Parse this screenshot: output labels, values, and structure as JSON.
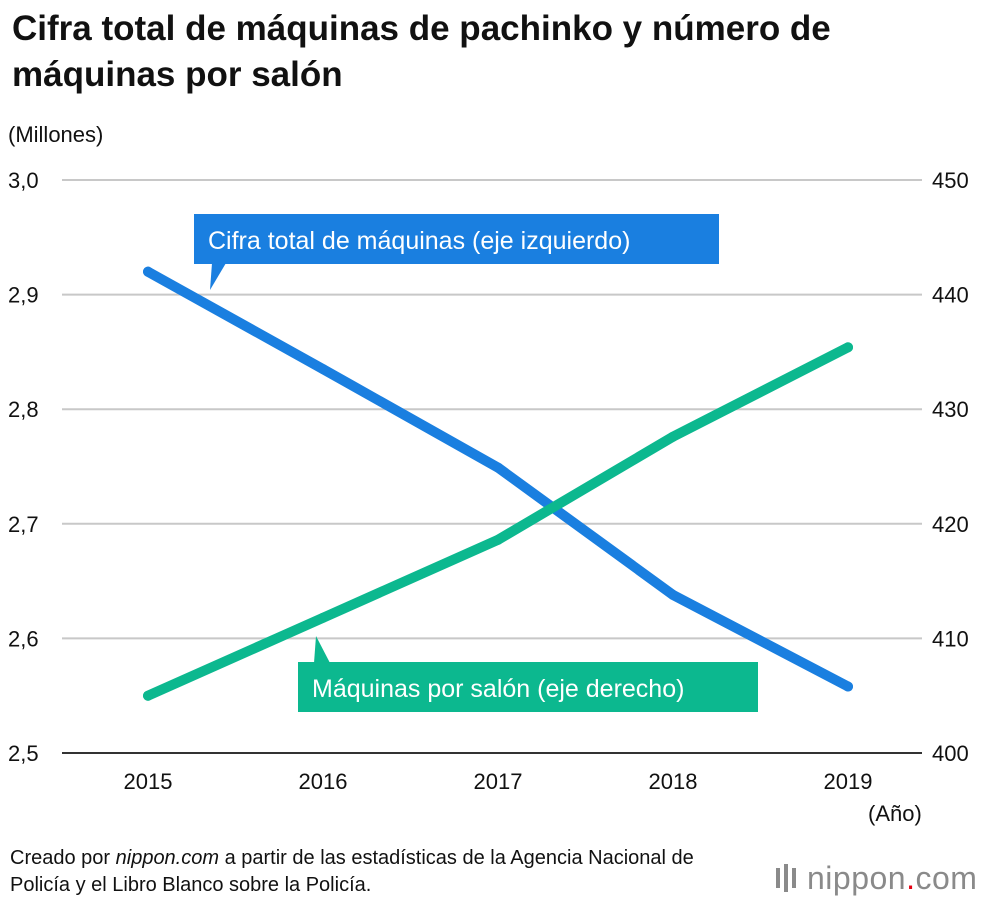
{
  "title": "Cifra total de máquinas de pachinko y número de máquinas por salón",
  "left_unit": "(Millones)",
  "right_unit": "(Año)",
  "footer": {
    "prefix": "Creado por ",
    "site": "nippon.com",
    "suffix": " a partir de las estadísticas de la Agencia Nacional de Policía y el Libro Blanco sobre la Policía."
  },
  "brand": {
    "name": "nippon",
    "dot": ".",
    "tld": "com",
    "icon": "nippon-logo-icon"
  },
  "colors": {
    "blue": "#1a7fe0",
    "green": "#0cb88f",
    "grid": "#c8c8c8",
    "axis": "#333333"
  },
  "chart_data": {
    "type": "line",
    "title": "Cifra total de máquinas de pachinko y número de máquinas por salón",
    "x": [
      "2015",
      "2016",
      "2017",
      "2018",
      "2019"
    ],
    "xlabel": "(Año)",
    "y_left": {
      "label": "(Millones)",
      "range": [
        2.5,
        3.0
      ],
      "ticks": [
        "2,5",
        "2,6",
        "2,7",
        "2,8",
        "2,9",
        "3,0"
      ],
      "tick_values": [
        2.5,
        2.6,
        2.7,
        2.8,
        2.9,
        3.0
      ]
    },
    "y_right": {
      "range": [
        400,
        450
      ],
      "ticks": [
        "400",
        "410",
        "420",
        "430",
        "440",
        "450"
      ],
      "tick_values": [
        400,
        410,
        420,
        430,
        440,
        450
      ]
    },
    "series": [
      {
        "name": "Cifra total de máquinas (eje izquierdo)",
        "axis": "left",
        "color": "#1a7fe0",
        "values": [
          2.92,
          2.835,
          2.749,
          2.638,
          2.558
        ]
      },
      {
        "name": "Máquinas por salón (eje derecho)",
        "axis": "right",
        "color": "#0cb88f",
        "values": [
          405.0,
          411.8,
          418.6,
          427.6,
          435.4
        ]
      }
    ],
    "grid": true,
    "legend": "callout labels on lines"
  }
}
